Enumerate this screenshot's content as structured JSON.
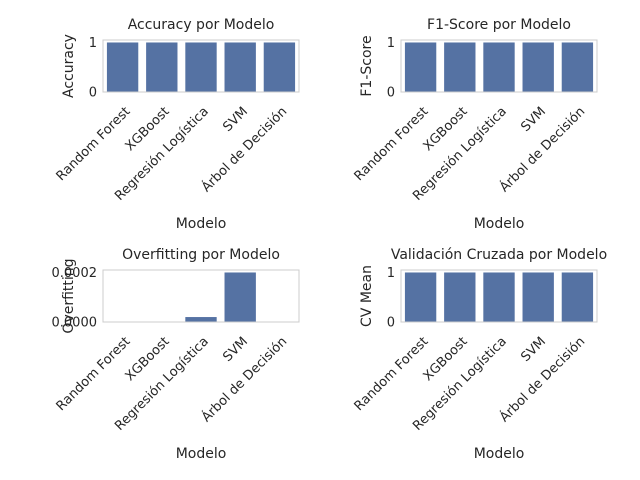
{
  "chart_data": [
    {
      "type": "bar",
      "title": "Accuracy por Modelo",
      "xlabel": "Modelo",
      "ylabel": "Accuracy",
      "categories": [
        "Random Forest",
        "XGBoost",
        "Regresión Logística",
        "SVM",
        "Árbol de Decisión"
      ],
      "values": [
        1,
        1,
        1,
        1,
        1
      ],
      "ylim": [
        0,
        1.05
      ],
      "yticks": [
        "0",
        "1"
      ],
      "grid": false
    },
    {
      "type": "bar",
      "title": "F1-Score por Modelo",
      "xlabel": "Modelo",
      "ylabel": "F1-Score",
      "categories": [
        "Random Forest",
        "XGBoost",
        "Regresión Logística",
        "SVM",
        "Árbol de Decisión"
      ],
      "values": [
        1,
        1,
        1,
        1,
        1
      ],
      "ylim": [
        0,
        1.05
      ],
      "yticks": [
        "0",
        "1"
      ],
      "grid": false
    },
    {
      "type": "bar",
      "title": "Overfitting por Modelo",
      "xlabel": "Modelo",
      "ylabel": "Overfitting",
      "categories": [
        "Random Forest",
        "XGBoost",
        "Regresión Logística",
        "SVM",
        "Árbol de Decisión"
      ],
      "values": [
        0,
        0,
        2e-05,
        0.0002,
        0
      ],
      "ylim": [
        0,
        0.00021
      ],
      "yticks": [
        "0.0000",
        "0.0002"
      ],
      "grid": false
    },
    {
      "type": "bar",
      "title": "Validación Cruzada por Modelo",
      "xlabel": "Modelo",
      "ylabel": "CV Mean",
      "categories": [
        "Random Forest",
        "XGBoost",
        "Regresión Logística",
        "SVM",
        "Árbol de Decisión"
      ],
      "values": [
        1,
        1,
        1,
        1,
        1
      ],
      "ylim": [
        0,
        1.05
      ],
      "yticks": [
        "0",
        "1"
      ],
      "grid": false
    }
  ],
  "colors": {
    "bar": "#5572a3",
    "frame": "#cccccc",
    "text": "#262626"
  }
}
